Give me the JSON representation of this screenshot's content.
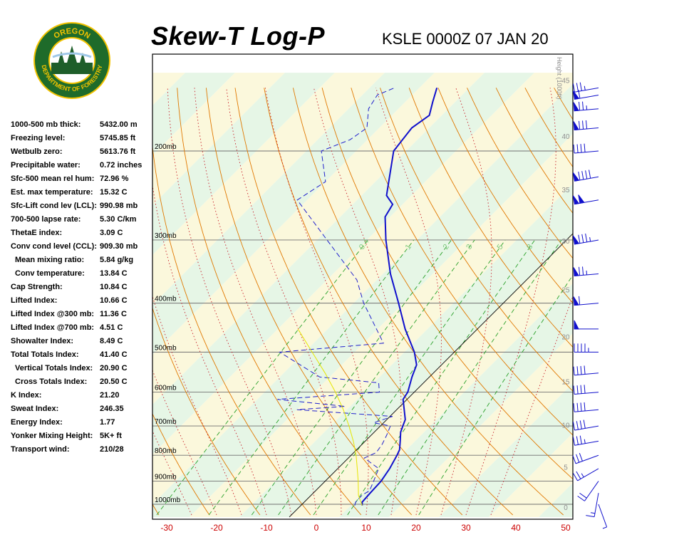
{
  "header": {
    "title": "Skew-T Log-P",
    "station_time": "KSLE 0000Z 07 JAN 20"
  },
  "logo": {
    "top_text": "OREGON",
    "bottom_text": "DEPARTMENT OF FORESTRY",
    "colors": {
      "ring": "#1e6b2a",
      "gold": "#f2c200",
      "tree": "#1e5e2a"
    }
  },
  "indices": [
    {
      "label": "1000-500 mb thick:",
      "value": "5432.00 m"
    },
    {
      "label": "Freezing level:",
      "value": "5745.85 ft"
    },
    {
      "label": "Wetbulb zero:",
      "value": "5613.76 ft"
    },
    {
      "label": "Precipitable water:",
      "value": "0.72 inches"
    },
    {
      "label": "Sfc-500 mean rel hum:",
      "value": "72.96 %"
    },
    {
      "label": "Est. max temperature:",
      "value": "15.32 C"
    },
    {
      "label": "Sfc-Lift cond lev (LCL):",
      "value": "990.98 mb"
    },
    {
      "label": "700-500 lapse rate:",
      "value": "5.30 C/km"
    },
    {
      "label": "ThetaE index:",
      "value": "3.09 C"
    },
    {
      "label": "Conv cond level (CCL):",
      "value": "909.30 mb"
    },
    {
      "label": "Mean mixing ratio:",
      "value": "5.84 g/kg",
      "indent": true
    },
    {
      "label": "Conv temperature:",
      "value": "13.84 C",
      "indent": true
    },
    {
      "label": "Cap Strength:",
      "value": "10.84 C"
    },
    {
      "label": "Lifted Index:",
      "value": "10.66 C"
    },
    {
      "label": "Lifted Index @300 mb:",
      "value": "11.36 C"
    },
    {
      "label": "Lifted Index @700 mb:",
      "value": "4.51 C"
    },
    {
      "label": "Showalter Index:",
      "value": "8.49 C"
    },
    {
      "label": "Total Totals Index:",
      "value": "41.40 C"
    },
    {
      "label": "Vertical Totals Index:",
      "value": "20.90 C",
      "indent": true
    },
    {
      "label": "Cross Totals Index:",
      "value": "20.50 C",
      "indent": true
    },
    {
      "label": "K Index:",
      "value": "21.20"
    },
    {
      "label": "Sweat Index:",
      "value": "246.35"
    },
    {
      "label": "Energy Index:",
      "value": "1.77"
    },
    {
      "label": "Yonker Mixing Height:",
      "value": "5K+ ft"
    },
    {
      "label": "Transport wind:",
      "value": "210/28"
    }
  ],
  "chart_data": {
    "type": "line",
    "title": "Skew-T Log-P",
    "subtitle": "KSLE 0000Z 07 JAN 20",
    "x_axis": {
      "unit": "C",
      "range": [
        -30,
        50
      ],
      "ticks": [
        -30,
        -20,
        -10,
        0,
        10,
        20,
        30,
        40,
        50
      ],
      "tick_labels": [
        "-30",
        "-20",
        "-10",
        "0",
        "10",
        "20",
        "30",
        "40",
        "50"
      ]
    },
    "pressure_axis": {
      "scale": "log",
      "range": [
        1050,
        150
      ],
      "levels": [
        1000,
        900,
        800,
        700,
        600,
        500,
        400,
        300,
        200
      ],
      "labels": [
        "1000mb",
        "900mb",
        "800mb",
        "700mb",
        "600mb",
        "500mb",
        "400mb",
        "300mb",
        "200mb"
      ]
    },
    "height_axis": {
      "label": "Height (1000ft)",
      "ticks": [
        0,
        5,
        10,
        15,
        20,
        25,
        30,
        35,
        40,
        45,
        50
      ],
      "tick_labels": [
        "0",
        "5",
        "10",
        "15",
        "20",
        "25",
        "30",
        "35",
        "40",
        "45",
        "50"
      ]
    },
    "mixing_ratio_labels": [
      "0.4",
      "1",
      "2",
      "3",
      "5",
      "8"
    ],
    "grid": true,
    "colors": {
      "temperature": "#1010cc",
      "dewpoint": "#2020cc",
      "parcel": "#e6e600",
      "dry_adiabat": "#e07800",
      "moist_adiabat": "#c8202a",
      "mixing_ratio": "#28a028",
      "isobar": "#707070",
      "zero_isotherm": "#000000",
      "band_green": "#e6f6e6",
      "band_yellow": "#fbf8dc",
      "axis_tick": "#cc0000",
      "wind": "#1010cc"
    },
    "series": [
      {
        "kind": "temperature",
        "points": [
          {
            "p": 1006,
            "t": 12.3
          },
          {
            "p": 990,
            "t": 11.6
          },
          {
            "p": 950,
            "t": 11.4
          },
          {
            "p": 900,
            "t": 11.2
          },
          {
            "p": 850,
            "t": 10.4
          },
          {
            "p": 800,
            "t": 9.2
          },
          {
            "p": 780,
            "t": 8.6
          },
          {
            "p": 750,
            "t": 7.0
          },
          {
            "p": 720,
            "t": 5.3
          },
          {
            "p": 700,
            "t": 4.5
          },
          {
            "p": 680,
            "t": 3.7
          },
          {
            "p": 650,
            "t": 1.5
          },
          {
            "p": 620,
            "t": -0.8
          },
          {
            "p": 600,
            "t": -1.3
          },
          {
            "p": 560,
            "t": -3.5
          },
          {
            "p": 530,
            "t": -5.0
          },
          {
            "p": 500,
            "t": -8.0
          },
          {
            "p": 450,
            "t": -14.5
          },
          {
            "p": 400,
            "t": -21.0
          },
          {
            "p": 350,
            "t": -28.5
          },
          {
            "p": 300,
            "t": -36.2
          },
          {
            "p": 270,
            "t": -41.0
          },
          {
            "p": 255,
            "t": -42.0
          },
          {
            "p": 245,
            "t": -45.0
          },
          {
            "p": 200,
            "t": -52.5
          },
          {
            "p": 180,
            "t": -53.5
          },
          {
            "p": 170,
            "t": -52.5
          },
          {
            "p": 160,
            "t": -54.5
          },
          {
            "p": 150,
            "t": -56.5
          }
        ]
      },
      {
        "kind": "dewpoint",
        "points": [
          {
            "p": 1006,
            "t": 10.8
          },
          {
            "p": 990,
            "t": 10.3
          },
          {
            "p": 960,
            "t": 10.2
          },
          {
            "p": 940,
            "t": 10.8
          },
          {
            "p": 900,
            "t": 9.7
          },
          {
            "p": 850,
            "t": 8.2
          },
          {
            "p": 810,
            "t": 3.2
          },
          {
            "p": 790,
            "t": 4.5
          },
          {
            "p": 760,
            "t": 4.0
          },
          {
            "p": 730,
            "t": 3.1
          },
          {
            "p": 700,
            "t": 2.0
          },
          {
            "p": 690,
            "t": -2.0
          },
          {
            "p": 670,
            "t": 0.5
          },
          {
            "p": 650,
            "t": -20.0
          },
          {
            "p": 640,
            "t": -11.0
          },
          {
            "p": 620,
            "t": -26.0
          },
          {
            "p": 600,
            "t": -7.0
          },
          {
            "p": 575,
            "t": -9.0
          },
          {
            "p": 560,
            "t": -22.0
          },
          {
            "p": 500,
            "t": -35.0
          },
          {
            "p": 480,
            "t": -16.0
          },
          {
            "p": 400,
            "t": -28.0
          },
          {
            "p": 360,
            "t": -34.0
          },
          {
            "p": 300,
            "t": -48.0
          },
          {
            "p": 250,
            "t": -62.0
          },
          {
            "p": 230,
            "t": -60.0
          },
          {
            "p": 200,
            "t": -67.0
          },
          {
            "p": 190,
            "t": -63.5
          },
          {
            "p": 180,
            "t": -62.5
          },
          {
            "p": 165,
            "t": -66.0
          },
          {
            "p": 155,
            "t": -67.0
          },
          {
            "p": 150,
            "t": -65.0
          }
        ]
      },
      {
        "kind": "parcel",
        "points": [
          {
            "p": 1006,
            "t": 12.3
          },
          {
            "p": 960,
            "t": 9.5
          },
          {
            "p": 900,
            "t": 6.6
          },
          {
            "p": 850,
            "t": 3.9
          },
          {
            "p": 800,
            "t": 1.0
          },
          {
            "p": 750,
            "t": -2.4
          },
          {
            "p": 700,
            "t": -6.3
          },
          {
            "p": 650,
            "t": -10.7
          },
          {
            "p": 600,
            "t": -15.8
          },
          {
            "p": 550,
            "t": -21.7
          },
          {
            "p": 500,
            "t": -28.5
          },
          {
            "p": 450,
            "t": -36.0
          }
        ]
      }
    ],
    "wind_barbs": [
      {
        "p": 1000,
        "dir": 160,
        "spd": 5
      },
      {
        "p": 950,
        "dir": 190,
        "spd": 15
      },
      {
        "p": 900,
        "dir": 215,
        "spd": 20
      },
      {
        "p": 850,
        "dir": 240,
        "spd": 25
      },
      {
        "p": 800,
        "dir": 250,
        "spd": 30
      },
      {
        "p": 750,
        "dir": 260,
        "spd": 35
      },
      {
        "p": 700,
        "dir": 260,
        "spd": 40
      },
      {
        "p": 650,
        "dir": 265,
        "spd": 40
      },
      {
        "p": 600,
        "dir": 265,
        "spd": 40
      },
      {
        "p": 550,
        "dir": 265,
        "spd": 40
      },
      {
        "p": 500,
        "dir": 270,
        "spd": 45
      },
      {
        "p": 450,
        "dir": 270,
        "spd": 50
      },
      {
        "p": 400,
        "dir": 265,
        "spd": 60
      },
      {
        "p": 350,
        "dir": 265,
        "spd": 75
      },
      {
        "p": 300,
        "dir": 260,
        "spd": 85
      },
      {
        "p": 250,
        "dir": 260,
        "spd": 100
      },
      {
        "p": 225,
        "dir": 260,
        "spd": 90
      },
      {
        "p": 200,
        "dir": 265,
        "spd": 40
      },
      {
        "p": 180,
        "dir": 265,
        "spd": 80
      },
      {
        "p": 165,
        "dir": 265,
        "spd": 75
      },
      {
        "p": 155,
        "dir": 260,
        "spd": 60
      },
      {
        "p": 150,
        "dir": 260,
        "spd": 35
      }
    ]
  }
}
